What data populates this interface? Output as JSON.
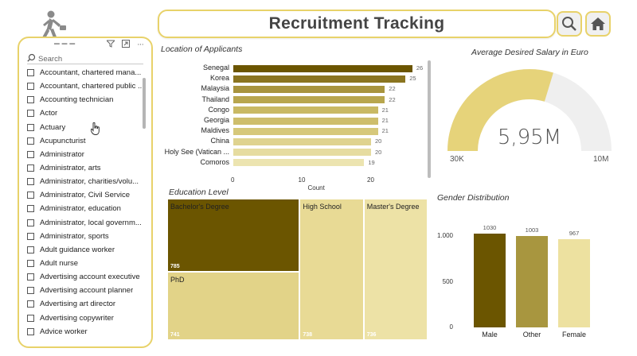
{
  "header": {
    "title": "Recruitment Tracking"
  },
  "slicer": {
    "search_placeholder": "Search",
    "items": [
      "Accountant, chartered mana...",
      "Accountant, chartered public ...",
      "Accounting technician",
      "Actor",
      "Actuary",
      "Acupuncturist",
      "Administrator",
      "Administrator, arts",
      "Administrator, charities/volu...",
      "Administrator, Civil Service",
      "Administrator, education",
      "Administrator, local governm...",
      "Administrator, sports",
      "Adult guidance worker",
      "Adult nurse",
      "Advertising account executive",
      "Advertising account planner",
      "Advertising art director",
      "Advertising copywriter",
      "Advice worker"
    ]
  },
  "location_chart": {
    "title": "Location of Applicants",
    "xlabel": "Count",
    "ticks": [
      "0",
      "10",
      "20"
    ],
    "colors": [
      "#6b5500",
      "#8a7420",
      "#a8943e",
      "#b8a64e",
      "#c9b964",
      "#cebe6c",
      "#d6c87a",
      "#dfd38f",
      "#e6dca0",
      "#ece4b0"
    ],
    "categories": [
      "Senegal",
      "Korea",
      "Malaysia",
      "Thailand",
      "Congo",
      "Georgia",
      "Maldives",
      "China",
      "Holy See (Vatican ...",
      "Comoros"
    ],
    "values": [
      26,
      25,
      22,
      22,
      21,
      21,
      21,
      20,
      20,
      19
    ],
    "value_labels": [
      "26",
      "25",
      "22",
      "22",
      "21",
      "21",
      "21",
      "20",
      "20",
      "19"
    ]
  },
  "salary_gauge": {
    "title": "Average Desired Salary in Euro",
    "value_label": "5,95M",
    "min_label": "30K",
    "max_label": "10M",
    "min": 30000,
    "max": 10000000,
    "value": 5950000,
    "fill_color": "#e6d37a",
    "track_color": "#efefef"
  },
  "education_chart": {
    "title": "Education Level",
    "items": [
      {
        "name": "Bachelor's Degree",
        "value": 785,
        "value_label": "785",
        "color": "#6b5500"
      },
      {
        "name": "PhD",
        "value": 741,
        "value_label": "741",
        "color": "#e2d388"
      },
      {
        "name": "High School",
        "value": 738,
        "value_label": "738",
        "color": "#e8da95"
      },
      {
        "name": "Master's Degree",
        "value": 736,
        "value_label": "736",
        "color": "#ede2a6"
      }
    ]
  },
  "gender_chart": {
    "title": "Gender Distribution",
    "y_ticks": [
      "1.000",
      "500",
      "0"
    ],
    "ymax": 1200,
    "categories": [
      "Male",
      "Other",
      "Female"
    ],
    "values": [
      1030,
      1003,
      967
    ],
    "value_labels": [
      "1030",
      "1003",
      "967"
    ],
    "colors": [
      "#6b5500",
      "#a8963f",
      "#ede1a0"
    ]
  }
}
